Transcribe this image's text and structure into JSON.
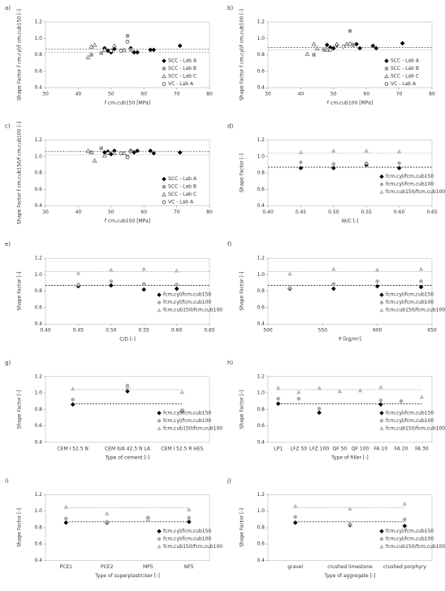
{
  "chart_data": [
    {
      "type": "scatter",
      "panel": "a)",
      "xlabel": "f cm,cub150 [MPa]",
      "ylabel": "Shape Factor f cm,cyl/f cm,cub150 [-]",
      "xlim": [
        30,
        80
      ],
      "xticks": [
        30,
        40,
        50,
        60,
        70,
        80
      ],
      "ylim": [
        0.4,
        1.2
      ],
      "yticks": [
        0.4,
        0.6,
        0.8,
        {
          "value": 1.0,
          "label": "1.0"
        },
        1.2
      ],
      "hlines": [
        {
          "value": 0.87,
          "color": "#555555"
        },
        {
          "value": 0.83,
          "color": "#aaaaaa"
        }
      ],
      "legend": "right",
      "series": [
        {
          "name": "SCC - Lab A",
          "marker": "diamond",
          "color": "#000000",
          "fill": "#000000",
          "x": [
            48,
            49,
            50,
            51,
            56,
            57,
            58,
            62,
            63,
            71
          ],
          "values": [
            0.88,
            0.85,
            0.83,
            0.87,
            0.88,
            0.83,
            0.83,
            0.86,
            0.86,
            0.91
          ]
        },
        {
          "name": "SCC - Lab B",
          "marker": "square",
          "color": "#999999",
          "fill": "#999999",
          "x": [
            44,
            47,
            55,
            56
          ],
          "values": [
            0.8,
            0.82,
            1.03,
            0.86
          ]
        },
        {
          "name": "SCC - Lab C",
          "marker": "triangle",
          "color": "#555555",
          "fill": "#ffffff",
          "x": [
            43,
            44,
            45,
            48,
            51,
            54
          ],
          "values": [
            0.77,
            0.9,
            0.92,
            0.86,
            0.91,
            0.86
          ]
        },
        {
          "name": "VC - Lab A",
          "marker": "circle",
          "color": "#333333",
          "fill": "#ffffff",
          "x": [
            50,
            53,
            55
          ],
          "values": [
            0.85,
            0.85,
            0.96
          ]
        }
      ]
    },
    {
      "type": "scatter",
      "panel": "b)",
      "xlabel": "f cm,cub100 [MPa]",
      "ylabel": "Shape Factor f cm,cyl/f cm,cub100 [-]",
      "xlim": [
        30,
        80
      ],
      "xticks": [
        30,
        40,
        50,
        60,
        70,
        80
      ],
      "ylim": [
        0.4,
        1.2
      ],
      "yticks": [
        0.4,
        0.6,
        0.8,
        {
          "value": 1.0,
          "label": "1.0"
        },
        1.2
      ],
      "hlines": [
        {
          "value": 0.89,
          "color": "#555555"
        },
        {
          "value": 0.86,
          "color": "#aaaaaa"
        }
      ],
      "legend": "right",
      "series": [
        {
          "name": "SCC - Lab A",
          "marker": "diamond",
          "color": "#000000",
          "fill": "#000000",
          "x": [
            48,
            49,
            50,
            51,
            56,
            57,
            58,
            62,
            63,
            71
          ],
          "values": [
            0.92,
            0.89,
            0.88,
            0.92,
            0.92,
            0.93,
            0.88,
            0.91,
            0.88,
            0.94
          ]
        },
        {
          "name": "SCC - Lab B",
          "marker": "square",
          "color": "#999999",
          "fill": "#999999",
          "x": [
            44,
            47,
            55,
            56
          ],
          "values": [
            0.8,
            0.86,
            1.09,
            0.92
          ]
        },
        {
          "name": "SCC - Lab C",
          "marker": "triangle",
          "color": "#555555",
          "fill": "#ffffff",
          "x": [
            42,
            44,
            45,
            48,
            51,
            54
          ],
          "values": [
            0.81,
            0.93,
            0.88,
            0.86,
            0.93,
            0.93
          ]
        },
        {
          "name": "VC - Lab A",
          "marker": "circle",
          "color": "#333333",
          "fill": "#ffffff",
          "x": [
            49,
            53,
            55
          ],
          "values": [
            0.86,
            0.9,
            0.93
          ]
        }
      ]
    },
    {
      "type": "scatter",
      "panel": "c)",
      "xlabel": "f cm,cub150 [MPa]",
      "ylabel": "Shape Factor f cm,cub150/f cm,cub100 [-]",
      "xlim": [
        30,
        80
      ],
      "xticks": [
        30,
        40,
        50,
        60,
        70,
        80
      ],
      "ylim": [
        0.4,
        1.2
      ],
      "yticks": [
        0.4,
        0.6,
        0.8,
        {
          "value": 1.0,
          "label": "1.0"
        },
        1.2
      ],
      "hlines": [
        {
          "value": 1.06,
          "color": "#555555"
        },
        {
          "value": 1.02,
          "color": "#aaaaaa"
        }
      ],
      "legend": "right",
      "series": [
        {
          "name": "SCC - Lab A",
          "marker": "diamond",
          "color": "#000000",
          "fill": "#000000",
          "x": [
            48,
            49,
            50,
            51,
            56,
            57,
            58,
            62,
            63,
            71
          ],
          "values": [
            1.05,
            1.06,
            1.03,
            1.07,
            1.07,
            1.05,
            1.07,
            1.07,
            1.04,
            1.05
          ]
        },
        {
          "name": "SCC - Lab B",
          "marker": "square",
          "color": "#999999",
          "fill": "#999999",
          "x": [
            44,
            47,
            55,
            56
          ],
          "values": [
            1.05,
            1.1,
            1.0,
            1.06
          ]
        },
        {
          "name": "SCC - Lab C",
          "marker": "triangle",
          "color": "#555555",
          "fill": "#ffffff",
          "x": [
            43,
            44,
            45,
            48,
            51,
            54
          ],
          "values": [
            1.07,
            1.05,
            0.95,
            1.01,
            1.04,
            1.04
          ]
        },
        {
          "name": "VC - Lab A",
          "marker": "circle",
          "color": "#333333",
          "fill": "#ffffff",
          "x": [
            49,
            53,
            55
          ],
          "values": [
            1.04,
            1.04,
            0.99
          ]
        }
      ]
    },
    {
      "type": "scatter",
      "panel": "d)",
      "xlabel": "W/C [-]",
      "ylabel": "Shape Factor [-]",
      "xlim": [
        0.4,
        0.65
      ],
      "xticks": [
        {
          "value": 0.4,
          "label": "0.40"
        },
        0.45,
        {
          "value": 0.5,
          "label": "0.50"
        },
        0.55,
        {
          "value": 0.6,
          "label": "0.60"
        },
        0.65
      ],
      "ylim": [
        0.4,
        1.2
      ],
      "yticks": [
        0.4,
        0.6,
        0.8,
        {
          "value": 1.0,
          "label": "1.0"
        },
        1.2
      ],
      "hlines": [
        {
          "value": 0.87,
          "color": "#000000"
        },
        {
          "value": 1.04,
          "color": "#aaaaaa"
        }
      ],
      "legend": "lower right",
      "x": [
        0.45,
        0.5,
        0.55,
        0.6
      ],
      "series": [
        {
          "name": "fcm,cyl/fcm,cub150",
          "marker": "diamond",
          "color": "#000000",
          "fill": "#000000",
          "values": [
            0.86,
            0.86,
            0.9,
            0.86
          ]
        },
        {
          "name": "fcm,cyl/fcm,cub100",
          "marker": "circle",
          "color": "#aaaaaa",
          "fill": "#aaaaaa",
          "values": [
            0.93,
            0.91,
            0.92,
            0.92
          ]
        },
        {
          "name": "fcm,cub150/fcm,cub100",
          "marker": "triangle",
          "color": "#bbbbbb",
          "fill": "#bbbbbb",
          "values": [
            1.05,
            1.07,
            1.07,
            1.06
          ]
        }
      ]
    },
    {
      "type": "scatter",
      "panel": "e)",
      "xlabel": "C/D [-]",
      "ylabel": "Shape Factor [-]",
      "xlim": [
        0.4,
        0.65
      ],
      "xticks": [
        {
          "value": 0.4,
          "label": "0.40"
        },
        0.45,
        {
          "value": 0.5,
          "label": "0.50"
        },
        0.55,
        {
          "value": 0.6,
          "label": "0.60"
        },
        0.65
      ],
      "ylim": [
        0.4,
        1.2
      ],
      "yticks": [
        0.4,
        0.6,
        0.8,
        {
          "value": 1.0,
          "label": "1.0"
        },
        1.2
      ],
      "hlines": [
        {
          "value": 0.87,
          "color": "#000000"
        },
        {
          "value": 1.04,
          "color": "#aaaaaa"
        }
      ],
      "legend": "lower right",
      "x": [
        0.45,
        0.5,
        0.55,
        0.6
      ],
      "series": [
        {
          "name": "fcm,cyl/fcm,cub150",
          "marker": "diamond",
          "color": "#000000",
          "fill": "#000000",
          "values": [
            0.86,
            0.87,
            0.82,
            0.83
          ]
        },
        {
          "name": "fcm,cyl/fcm,cub100",
          "marker": "circle",
          "color": "#aaaaaa",
          "fill": "#aaaaaa",
          "values": [
            0.88,
            0.92,
            0.89,
            0.88
          ]
        },
        {
          "name": "fcm,cub150/fcm,cub100",
          "marker": "triangle",
          "color": "#bbbbbb",
          "fill": "#bbbbbb",
          "values": [
            1.02,
            1.06,
            1.07,
            1.05
          ]
        }
      ]
    },
    {
      "type": "scatter",
      "panel": "f)",
      "xlabel": "P [kg/m³]",
      "ylabel": "Shape Factor [-]",
      "xlim": [
        500,
        650
      ],
      "xticks": [
        500,
        550,
        600,
        650
      ],
      "ylim": [
        0.4,
        1.2
      ],
      "yticks": [
        0.4,
        0.6,
        0.8,
        {
          "value": 1.0,
          "label": "1.0"
        },
        1.2
      ],
      "hlines": [
        {
          "value": 0.87,
          "color": "#000000"
        },
        {
          "value": 1.04,
          "color": "#aaaaaa"
        }
      ],
      "legend": "lower right",
      "x": [
        520,
        560,
        600,
        640
      ],
      "series": [
        {
          "name": "fcm,cyl/fcm,cub150",
          "marker": "diamond",
          "color": "#000000",
          "fill": "#000000",
          "values": [
            0.83,
            0.83,
            0.86,
            0.85
          ]
        },
        {
          "name": "fcm,cyl/fcm,cub100",
          "marker": "circle",
          "color": "#aaaaaa",
          "fill": "#aaaaaa",
          "values": [
            0.84,
            0.89,
            0.92,
            0.92
          ]
        },
        {
          "name": "fcm,cub150/fcm,cub100",
          "marker": "triangle",
          "color": "#bbbbbb",
          "fill": "#bbbbbb",
          "values": [
            1.01,
            1.07,
            1.06,
            1.07
          ]
        }
      ]
    },
    {
      "type": "category-scatter",
      "panel": "g)",
      "xlabel": "Type of cement [-]",
      "ylabel": "Shape Factor [-]",
      "ylim": [
        0.4,
        1.2
      ],
      "yticks": [
        0.4,
        0.6,
        0.8,
        {
          "value": 1.0,
          "label": "1.0"
        },
        1.2
      ],
      "hlines": [
        {
          "value": 0.87,
          "color": "#000000"
        },
        {
          "value": 1.04,
          "color": "#aaaaaa"
        }
      ],
      "legend": "lower right",
      "categories": [
        "CEM I 52.5 N",
        "CEM II/A 42.5 N LA",
        "CEM I 52.5 R HES"
      ],
      "series": [
        {
          "name": "fcm,cyl/fcm,cub150",
          "marker": "diamond",
          "color": "#000000",
          "fill": "#000000",
          "values": [
            0.86,
            1.02,
            0.78
          ]
        },
        {
          "name": "fcm,cyl/fcm,cub100",
          "marker": "circle",
          "color": "#aaaaaa",
          "fill": "#aaaaaa",
          "values": [
            0.92,
            1.09,
            0.79
          ]
        },
        {
          "name": "fcm,cub150/fcm,cub100",
          "marker": "triangle",
          "color": "#bbbbbb",
          "fill": "#bbbbbb",
          "values": [
            1.05,
            1.07,
            1.01
          ]
        }
      ]
    },
    {
      "type": "category-scatter",
      "panel": "h)",
      "xlabel": "Type of filler [-]",
      "ylabel": "Shape Factor [-]",
      "ylim": [
        0.4,
        1.2
      ],
      "yticks": [
        0.4,
        0.6,
        0.8,
        {
          "value": 1.0,
          "label": "1.0"
        },
        1.2
      ],
      "hlines": [
        {
          "value": 0.87,
          "color": "#000000"
        },
        {
          "value": 1.04,
          "color": "#aaaaaa"
        }
      ],
      "legend": "lower right",
      "categories": [
        "LP1",
        "LFZ 50",
        "LFZ 100",
        "QF 50",
        "QF 100",
        "FA 10",
        "FA 20",
        "FA 30"
      ],
      "series": [
        {
          "name": "fcm,cyl/fcm,cub150",
          "marker": "diamond",
          "color": "#000000",
          "fill": "#000000",
          "values": [
            0.87,
            null,
            0.76,
            null,
            null,
            0.86,
            null,
            null
          ]
        },
        {
          "name": "fcm,cyl/fcm,cub100",
          "marker": "circle",
          "color": "#aaaaaa",
          "fill": "#aaaaaa",
          "values": [
            0.93,
            0.93,
            0.81,
            null,
            null,
            0.91,
            0.9,
            null
          ]
        },
        {
          "name": "fcm,cub150/fcm,cub100",
          "marker": "triangle",
          "color": "#bbbbbb",
          "fill": "#bbbbbb",
          "values": [
            1.06,
            1.01,
            1.06,
            1.02,
            1.03,
            1.07,
            null,
            0.95
          ]
        }
      ]
    },
    {
      "type": "category-scatter",
      "panel": "i)",
      "xlabel": "Type of superplasticiser [-]",
      "ylabel": "Shape Factor [-]",
      "ylim": [
        0.4,
        1.2
      ],
      "yticks": [
        0.4,
        0.6,
        0.8,
        {
          "value": 1.0,
          "label": "1.0"
        },
        1.2
      ],
      "hlines": [
        {
          "value": 0.87,
          "color": "#000000"
        },
        {
          "value": 1.04,
          "color": "#aaaaaa"
        }
      ],
      "legend": "lower right",
      "categories": [
        "PCE1",
        "PCE2",
        "MP5",
        "NF5"
      ],
      "series": [
        {
          "name": "fcm,cyl/fcm,cub150",
          "marker": "diamond",
          "color": "#000000",
          "fill": "#000000",
          "values": [
            0.86,
            0.86,
            0.92,
            0.87
          ]
        },
        {
          "name": "fcm,cyl/fcm,cub100",
          "marker": "circle",
          "color": "#aaaaaa",
          "fill": "#aaaaaa",
          "values": [
            0.91,
            0.87,
            0.92,
            0.92
          ]
        },
        {
          "name": "fcm,cub150/fcm,cub100",
          "marker": "triangle",
          "color": "#bbbbbb",
          "fill": "#bbbbbb",
          "values": [
            1.05,
            0.97,
            0.9,
            1.02
          ]
        }
      ]
    },
    {
      "type": "category-scatter",
      "panel": "j)",
      "xlabel": "Type of aggregate [-]",
      "ylabel": "Shape Factor [-]",
      "ylim": [
        0.4,
        1.2
      ],
      "yticks": [
        0.4,
        0.6,
        0.8,
        {
          "value": 1.0,
          "label": "1.0"
        },
        1.2
      ],
      "hlines": [
        {
          "value": 0.87,
          "color": "#000000"
        },
        {
          "value": 1.04,
          "color": "#aaaaaa"
        }
      ],
      "legend": "lower right",
      "categories": [
        "gravel",
        "crushed limestone",
        "crushed porphyry"
      ],
      "series": [
        {
          "name": "fcm,cyl/fcm,cub150",
          "marker": "diamond",
          "color": "#000000",
          "fill": "#000000",
          "values": [
            0.86,
            0.83,
            0.82
          ]
        },
        {
          "name": "fcm,cyl/fcm,cub100",
          "marker": "circle",
          "color": "#aaaaaa",
          "fill": "#aaaaaa",
          "values": [
            0.93,
            0.84,
            0.9
          ]
        },
        {
          "name": "fcm,cub150/fcm,cub100",
          "marker": "triangle",
          "color": "#bbbbbb",
          "fill": "#bbbbbb",
          "values": [
            1.06,
            1.03,
            1.09
          ]
        }
      ]
    }
  ]
}
